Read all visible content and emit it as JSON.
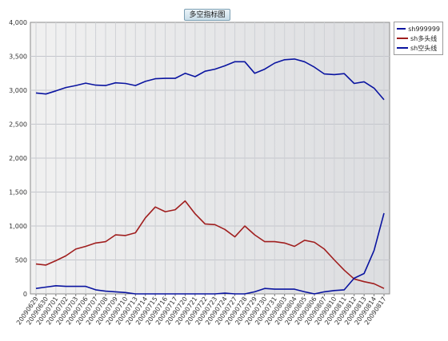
{
  "chart_data": {
    "type": "line",
    "title": "多空指标图",
    "xlabel": "",
    "ylabel": "",
    "ylim": [
      0,
      4000
    ],
    "yticks": [
      "0",
      "500",
      "1,000",
      "1,500",
      "2,000",
      "2,500",
      "3,000",
      "3,500",
      "4,000"
    ],
    "grid": true,
    "legend_position": "top-right",
    "categories": [
      "20090629",
      "20090630",
      "20090701",
      "20090702",
      "20090703",
      "20090706",
      "20090707",
      "20090708",
      "20090709",
      "20090710",
      "20090713",
      "20090714",
      "20090715",
      "20090716",
      "20090717",
      "20090720",
      "20090721",
      "20090722",
      "20090723",
      "20090724",
      "20090727",
      "20090728",
      "20090729",
      "20090730",
      "20090731",
      "20090803",
      "20090804",
      "20090805",
      "20090806",
      "20090807",
      "20090810",
      "20090811",
      "20090812",
      "20090813",
      "20090814",
      "20090817"
    ],
    "series": [
      {
        "name": "sh999999",
        "color": "#0a14a0",
        "values": [
          2960,
          2945,
          2990,
          3040,
          3070,
          3105,
          3075,
          3070,
          3110,
          3100,
          3070,
          3130,
          3170,
          3175,
          3175,
          3250,
          3200,
          3280,
          3310,
          3360,
          3420,
          3420,
          3250,
          3310,
          3400,
          3450,
          3460,
          3420,
          3340,
          3240,
          3230,
          3245,
          3100,
          3125,
          3030,
          2860
        ]
      },
      {
        "name": "sh多头线",
        "color": "#a01e1e",
        "values": [
          440,
          425,
          490,
          560,
          660,
          700,
          750,
          770,
          870,
          860,
          900,
          1120,
          1280,
          1210,
          1240,
          1370,
          1180,
          1030,
          1020,
          950,
          840,
          1000,
          870,
          770,
          770,
          750,
          700,
          790,
          760,
          660,
          500,
          350,
          220,
          180,
          150,
          80
        ]
      },
      {
        "name": "sh空头线",
        "color": "#0a14a0",
        "values": [
          80,
          100,
          120,
          110,
          110,
          110,
          60,
          40,
          30,
          20,
          0,
          0,
          0,
          0,
          0,
          0,
          0,
          0,
          0,
          10,
          0,
          0,
          30,
          80,
          70,
          70,
          70,
          30,
          0,
          30,
          50,
          60,
          230,
          300,
          640,
          1190
        ]
      }
    ]
  }
}
